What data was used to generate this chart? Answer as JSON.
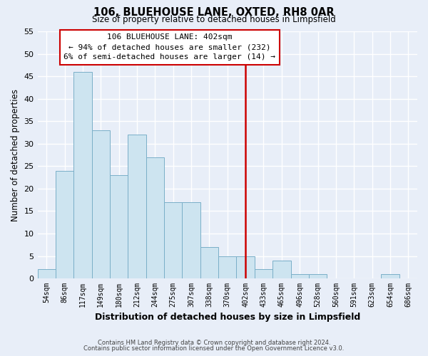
{
  "title": "106, BLUEHOUSE LANE, OXTED, RH8 0AR",
  "subtitle": "Size of property relative to detached houses in Limpsfield",
  "xlabel": "Distribution of detached houses by size in Limpsfield",
  "ylabel": "Number of detached properties",
  "bin_labels": [
    "54sqm",
    "86sqm",
    "117sqm",
    "149sqm",
    "180sqm",
    "212sqm",
    "244sqm",
    "275sqm",
    "307sqm",
    "338sqm",
    "370sqm",
    "402sqm",
    "433sqm",
    "465sqm",
    "496sqm",
    "528sqm",
    "560sqm",
    "591sqm",
    "623sqm",
    "654sqm",
    "686sqm"
  ],
  "bar_heights": [
    2,
    24,
    46,
    33,
    23,
    32,
    27,
    17,
    17,
    7,
    5,
    5,
    2,
    4,
    1,
    1,
    0,
    0,
    0,
    1,
    0
  ],
  "bar_color": "#cde4f0",
  "bar_edge_color": "#7aafc8",
  "property_line_idx": 11,
  "property_line_label": "106 BLUEHOUSE LANE: 402sqm",
  "annotation_line1": "← 94% of detached houses are smaller (232)",
  "annotation_line2": "6% of semi-detached houses are larger (14) →",
  "ylim": [
    0,
    55
  ],
  "yticks": [
    0,
    5,
    10,
    15,
    20,
    25,
    30,
    35,
    40,
    45,
    50,
    55
  ],
  "footnote1": "Contains HM Land Registry data © Crown copyright and database right 2024.",
  "footnote2": "Contains public sector information licensed under the Open Government Licence v3.0.",
  "background_color": "#e8eef8",
  "grid_color": "#ffffff",
  "annotation_box_color": "#ffffff",
  "annotation_border_color": "#cc0000",
  "vline_color": "#cc0000"
}
